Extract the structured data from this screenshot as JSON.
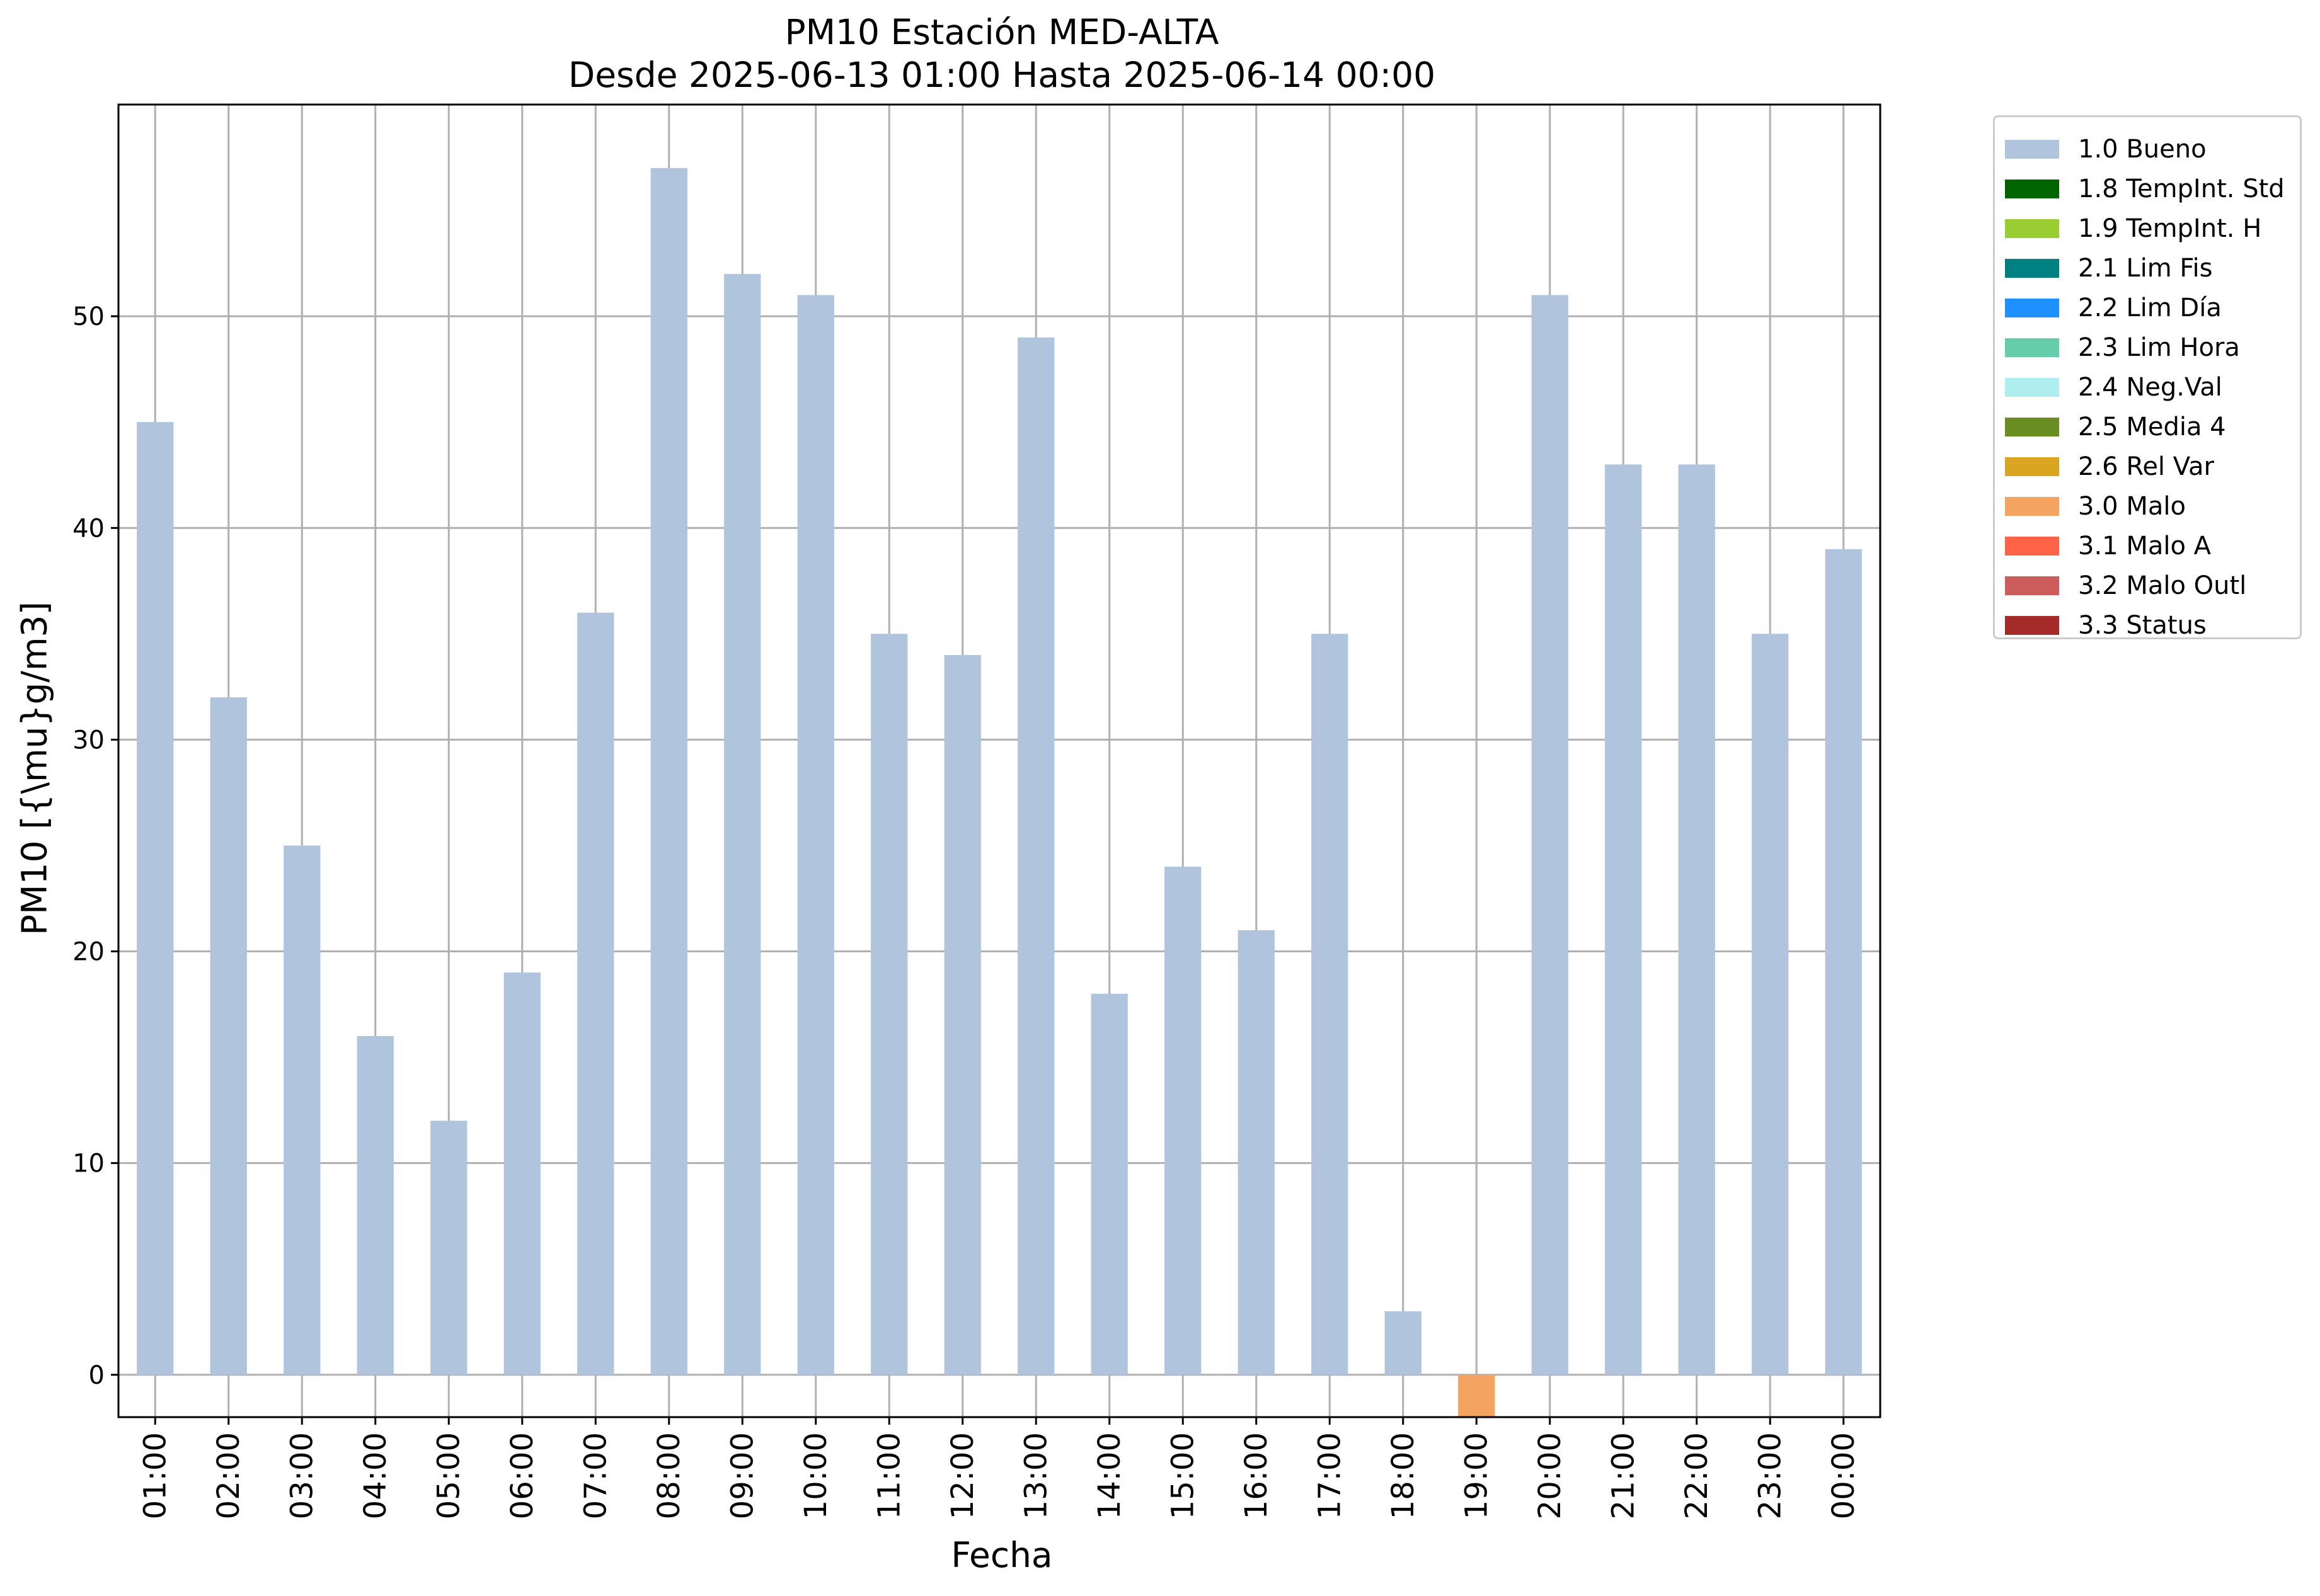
{
  "chart_data": {
    "type": "bar",
    "title": "PM10 Estación MED-ALTA",
    "subtitle": "Desde 2025-06-13 01:00 Hasta 2025-06-14 00:00",
    "xlabel": "Fecha",
    "ylabel": "PM10 [{\\mu}g/m3]",
    "ylim": [
      -2,
      60
    ],
    "yticks": [
      0,
      10,
      20,
      30,
      40,
      50
    ],
    "grid": true,
    "legend_position": "outside-right",
    "categories": [
      "01:00",
      "02:00",
      "03:00",
      "04:00",
      "05:00",
      "06:00",
      "07:00",
      "08:00",
      "09:00",
      "10:00",
      "11:00",
      "12:00",
      "13:00",
      "14:00",
      "15:00",
      "16:00",
      "17:00",
      "18:00",
      "19:00",
      "20:00",
      "21:00",
      "22:00",
      "23:00",
      "00:00"
    ],
    "values": [
      45,
      32,
      25,
      16,
      12,
      19,
      36,
      57,
      52,
      51,
      35,
      34,
      49,
      18,
      24,
      21,
      35,
      3,
      -2,
      51,
      43,
      43,
      35,
      39
    ],
    "flags": [
      "1.0 Bueno",
      "1.0 Bueno",
      "1.0 Bueno",
      "1.0 Bueno",
      "1.0 Bueno",
      "1.0 Bueno",
      "1.0 Bueno",
      "1.0 Bueno",
      "1.0 Bueno",
      "1.0 Bueno",
      "1.0 Bueno",
      "1.0 Bueno",
      "1.0 Bueno",
      "1.0 Bueno",
      "1.0 Bueno",
      "1.0 Bueno",
      "1.0 Bueno",
      "1.0 Bueno",
      "3.0 Malo",
      "1.0 Bueno",
      "1.0 Bueno",
      "1.0 Bueno",
      "1.0 Bueno",
      "1.0 Bueno"
    ],
    "legend": [
      {
        "label": "1.0 Bueno",
        "color": "#b0c4de"
      },
      {
        "label": "1.8 TempInt. Std",
        "color": "#006400"
      },
      {
        "label": "1.9 TempInt. H",
        "color": "#9acd32"
      },
      {
        "label": "2.1 Lim Fis",
        "color": "#008080"
      },
      {
        "label": "2.2 Lim Día",
        "color": "#1e90ff"
      },
      {
        "label": "2.3 Lim Hora",
        "color": "#66cdaa"
      },
      {
        "label": "2.4 Neg.Val",
        "color": "#afeeee"
      },
      {
        "label": "2.5 Media 4",
        "color": "#6b8e23"
      },
      {
        "label": "2.6 Rel Var",
        "color": "#daa520"
      },
      {
        "label": "3.0 Malo",
        "color": "#f4a460"
      },
      {
        "label": "3.1 Malo A",
        "color": "#ff6347"
      },
      {
        "label": "3.2 Malo Outl",
        "color": "#cd5c5c"
      },
      {
        "label": "3.3 Status",
        "color": "#a52a2a"
      }
    ]
  }
}
